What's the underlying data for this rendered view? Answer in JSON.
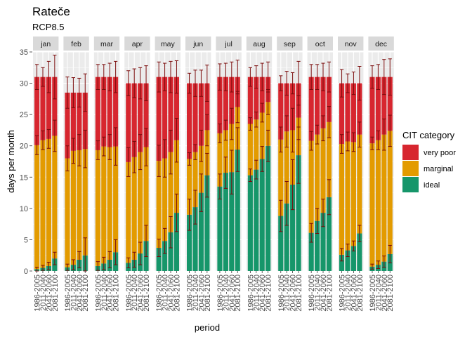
{
  "chart_data": {
    "type": "bar",
    "stacked": true,
    "title": "Rateče",
    "subtitle": "RCP8.5",
    "xlabel": "period",
    "ylabel": "days per month",
    "ylim": [
      0,
      35
    ],
    "yticks": [
      0,
      5,
      10,
      15,
      20,
      25,
      30,
      35
    ],
    "grid": true,
    "legend": {
      "title": "CIT category",
      "position": "right",
      "entries": [
        "very poor",
        "marginal",
        "ideal"
      ]
    },
    "colors": {
      "very poor": "#d7262f",
      "marginal": "#e39b00",
      "ideal": "#16966a",
      "errorbar": "#7a0b0b",
      "panel": "#ebebeb",
      "strip": "#d9d9d9"
    },
    "facets": [
      "jan",
      "feb",
      "mar",
      "apr",
      "may",
      "jun",
      "jul",
      "aug",
      "sep",
      "oct",
      "nov",
      "dec"
    ],
    "categories": [
      "1986-2005",
      "2011-2040",
      "2041-2060",
      "2081-2100"
    ],
    "totals": [
      31,
      28.5,
      31,
      30,
      31,
      30,
      31,
      31,
      30,
      31,
      30,
      31
    ],
    "ideal": [
      [
        0.3,
        0.5,
        0.8,
        2.0
      ],
      [
        0.6,
        1.0,
        1.8,
        2.5
      ],
      [
        0.8,
        1.2,
        1.8,
        3.0
      ],
      [
        1.3,
        1.8,
        2.8,
        4.8
      ],
      [
        3.7,
        4.8,
        6.2,
        9.3
      ],
      [
        9.0,
        10.2,
        12.5,
        15.3
      ],
      [
        13.5,
        15.7,
        15.8,
        19.4
      ],
      [
        15.3,
        16.2,
        17.9,
        20.0
      ],
      [
        8.8,
        10.8,
        13.8,
        18.5
      ],
      [
        6.1,
        8.0,
        9.3,
        11.8
      ],
      [
        2.6,
        3.3,
        4.0,
        6.0
      ],
      [
        0.7,
        1.0,
        1.5,
        2.7
      ]
    ],
    "marginal_top": [
      [
        20.1,
        20.9,
        21.1,
        21.6
      ],
      [
        18.0,
        19.2,
        19.3,
        19.5
      ],
      [
        19.3,
        19.9,
        19.8,
        19.9
      ],
      [
        17.4,
        18.2,
        19.0,
        19.8
      ],
      [
        17.6,
        18.0,
        19.0,
        20.9
      ],
      [
        17.9,
        19.0,
        20.0,
        22.5
      ],
      [
        22.0,
        22.5,
        23.5,
        26.2
      ],
      [
        23.5,
        24.2,
        25.3,
        27.0
      ],
      [
        21.0,
        22.3,
        22.5,
        24.5
      ],
      [
        20.8,
        21.8,
        22.8,
        23.8
      ],
      [
        20.3,
        20.7,
        20.6,
        21.8
      ],
      [
        20.4,
        20.9,
        21.8,
        22.4
      ]
    ],
    "errors": {
      "very_poor": [
        [
          2,
          1.5,
          2.5,
          3.5
        ],
        [
          2.5,
          2.4,
          2.3,
          3.0
        ],
        [
          2,
          2,
          2.2,
          2.5
        ],
        [
          2,
          2.3,
          2.5,
          2.8
        ],
        [
          2.4,
          2.2,
          2.5,
          2.6
        ],
        [
          1.6,
          2.1,
          2.1,
          2.9
        ],
        [
          2.1,
          2.2,
          2.4,
          2.7
        ],
        [
          1.5,
          1.8,
          2.2,
          2.4
        ],
        [
          1.2,
          1.9,
          1.7,
          3.5
        ],
        [
          2.0,
          2.0,
          2.2,
          2.4
        ],
        [
          2.2,
          1.5,
          1.8,
          2.7
        ],
        [
          1.8,
          2.0,
          2.8,
          2.9
        ]
      ],
      "marginal": [
        [
          1.5,
          1.5,
          1.5,
          2.5
        ],
        [
          2.0,
          2.0,
          2.5,
          3.0
        ],
        [
          1.5,
          1.5,
          2.0,
          3.0
        ],
        [
          2.3,
          2.5,
          2.8,
          3.0
        ],
        [
          2.5,
          3.0,
          3.5,
          3.5
        ],
        [
          1.0,
          1.2,
          2.5,
          2.5
        ],
        [
          1.5,
          1.6,
          2.5,
          2.5
        ],
        [
          1.0,
          1.2,
          1.5,
          2.0
        ],
        [
          2.0,
          2.5,
          3.5,
          3.5
        ],
        [
          1.5,
          1.5,
          2.0,
          2.5
        ],
        [
          1.5,
          1.5,
          1.5,
          2.0
        ],
        [
          1.0,
          1.5,
          2.5,
          2.5
        ]
      ],
      "ideal": [
        [
          0.3,
          0.4,
          0.6,
          1.0
        ],
        [
          0.5,
          0.8,
          1.3,
          2.8
        ],
        [
          0.7,
          1.0,
          1.3,
          2.0
        ],
        [
          0.8,
          1.2,
          1.8,
          2.5
        ],
        [
          1.4,
          2.0,
          2.5,
          3.0
        ],
        [
          2.5,
          2.7,
          3.0,
          3.5
        ],
        [
          2.0,
          2.5,
          3.5,
          3.5
        ],
        [
          1.0,
          1.5,
          2.0,
          2.5
        ],
        [
          2.5,
          3.5,
          4.0,
          4.5
        ],
        [
          1.5,
          2.0,
          2.2,
          2.8
        ],
        [
          1.0,
          1.0,
          0.8,
          1.3
        ],
        [
          0.4,
          0.6,
          0.9,
          1.4
        ]
      ]
    }
  }
}
